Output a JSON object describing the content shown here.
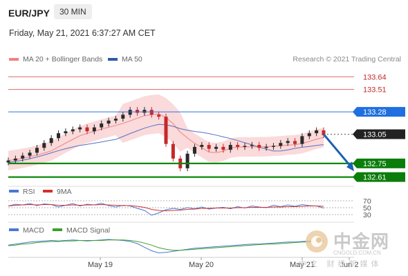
{
  "header": {
    "symbol": "EUR/JPY",
    "timeframe": "30 MIN",
    "datetime": "Friday, May 21, 2021 6:37:27 AM CET"
  },
  "legend": {
    "ma20": "MA 20 + Bollinger Bands",
    "ma50": "MA 50",
    "credit": "Research © 2021 Trading Central",
    "rsi": "RSI",
    "rsi_ma": "9MA",
    "macd": "MACD",
    "macd_signal": "MACD Signal"
  },
  "colors": {
    "resistance": "#e06666",
    "pivot_line": "#2f6fdf",
    "support": "#0a8a0a",
    "up_candle": "#2a2a2a",
    "down_candle": "#c62828",
    "band_fill": "#f9d3d3",
    "ma20": "#f08080",
    "ma50": "#5470c6",
    "arrow": "#2060b0",
    "current_price": "#222222"
  },
  "watermark": {
    "cn": "中金网",
    "url": "CNGOLD.COM.CN",
    "sub": "中文 财经新媒体"
  },
  "chart_data": [
    {
      "type": "line",
      "title": "",
      "x_ticks": [
        "May 19",
        "May 20",
        "May 21",
        "Jun 2"
      ],
      "price_levels": [
        {
          "value": 133.64,
          "label": "133.64",
          "kind": "resistance"
        },
        {
          "value": 133.51,
          "label": "133.51",
          "kind": "resistance"
        },
        {
          "value": 133.28,
          "label": "133.28",
          "kind": "pivot"
        },
        {
          "value": 133.05,
          "label": "133.05",
          "kind": "current"
        },
        {
          "value": 132.75,
          "label": "132.75",
          "kind": "support"
        },
        {
          "value": 132.61,
          "label": "132.61",
          "kind": "support"
        }
      ],
      "ylim": [
        132.6,
        133.72
      ],
      "series": [
        {
          "name": "MA 20 + Bollinger Bands",
          "kind": "ma20"
        },
        {
          "name": "MA 50",
          "kind": "ma50"
        }
      ],
      "close_path": [
        132.78,
        132.8,
        132.83,
        132.86,
        132.91,
        132.96,
        133.01,
        133.06,
        133.08,
        133.1,
        133.12,
        133.08,
        133.12,
        133.16,
        133.19,
        133.21,
        133.25,
        133.3,
        133.27,
        133.3,
        133.25,
        133.23,
        132.95,
        132.8,
        132.7,
        132.85,
        132.92,
        132.94,
        132.9,
        132.92,
        132.89,
        132.94,
        132.92,
        132.93,
        132.94,
        132.91,
        132.92,
        132.93,
        132.96,
        132.98,
        132.95,
        133.03,
        133.06,
        133.09,
        133.04
      ],
      "projection": {
        "from": 133.05,
        "to": 132.67
      }
    },
    {
      "type": "line",
      "title": "RSI",
      "y_ticks": [
        70,
        50,
        30
      ],
      "ylim": [
        20,
        80
      ],
      "series": [
        {
          "name": "RSI",
          "values": [
            55,
            60,
            58,
            62,
            56,
            61,
            59,
            52,
            57,
            62,
            55,
            60,
            58,
            63,
            56,
            52,
            57,
            55,
            48,
            42,
            28,
            35,
            44,
            48,
            45,
            50,
            47,
            52,
            46,
            49,
            51,
            47,
            53,
            49,
            55,
            52,
            50,
            57,
            53,
            58,
            54,
            59,
            56,
            55,
            49
          ]
        },
        {
          "name": "9MA",
          "values": [
            55,
            57,
            58,
            59,
            58,
            59,
            59,
            57,
            57,
            58,
            57,
            58,
            58,
            59,
            58,
            57,
            56,
            56,
            54,
            51,
            45,
            42,
            41,
            42,
            43,
            45,
            46,
            48,
            48,
            49,
            49,
            49,
            50,
            50,
            51,
            51,
            51,
            52,
            52,
            53,
            53,
            54,
            55,
            55,
            54
          ]
        }
      ]
    },
    {
      "type": "line",
      "title": "MACD",
      "series": [
        {
          "name": "MACD",
          "values": [
            0.01,
            0.03,
            0.05,
            0.07,
            0.08,
            0.09,
            0.1,
            0.09,
            0.1,
            0.11,
            0.1,
            0.09,
            0.1,
            0.11,
            0.12,
            0.11,
            0.1,
            0.08,
            0.04,
            -0.03,
            -0.1,
            -0.14,
            -0.13,
            -0.11,
            -0.09,
            -0.07,
            -0.05,
            -0.04,
            -0.03,
            -0.02,
            -0.01,
            0.0,
            0.01,
            0.02,
            0.03,
            0.03,
            0.04,
            0.05,
            0.06,
            0.07,
            0.07,
            0.08,
            0.09,
            0.1,
            0.09
          ]
        },
        {
          "name": "MACD Signal",
          "values": [
            0.0,
            0.01,
            0.03,
            0.04,
            0.06,
            0.07,
            0.08,
            0.08,
            0.09,
            0.09,
            0.1,
            0.1,
            0.1,
            0.1,
            0.11,
            0.11,
            0.11,
            0.1,
            0.08,
            0.05,
            0.01,
            -0.04,
            -0.07,
            -0.09,
            -0.09,
            -0.08,
            -0.07,
            -0.06,
            -0.05,
            -0.04,
            -0.03,
            -0.02,
            -0.01,
            0.0,
            0.01,
            0.02,
            0.03,
            0.03,
            0.04,
            0.05,
            0.06,
            0.07,
            0.07,
            0.08,
            0.09
          ]
        }
      ]
    }
  ]
}
